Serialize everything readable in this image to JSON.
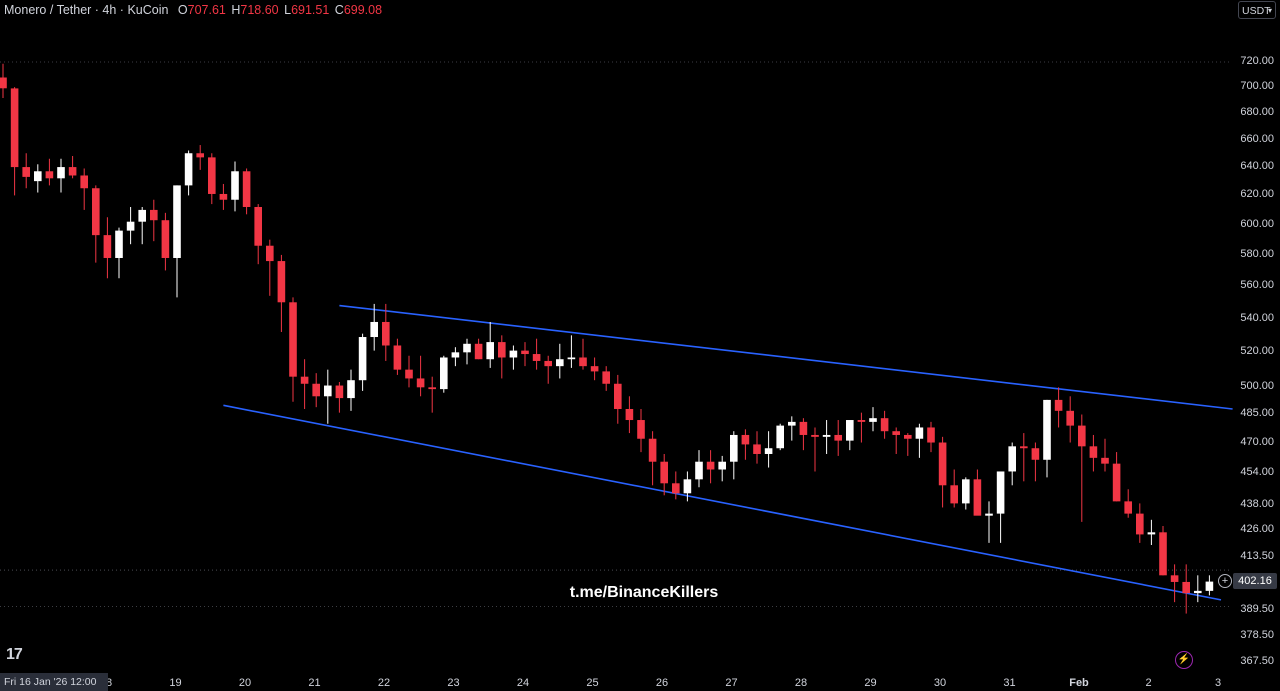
{
  "header": {
    "symbol": "Monero / Tether · 4h · KuCoin",
    "o_label": "O",
    "o_value": "707.61",
    "h_label": "H",
    "h_value": "718.60",
    "l_label": "L",
    "l_value": "691.51",
    "c_label": "C",
    "c_value": "699.08"
  },
  "currency_button": "USDT",
  "watermark": "t.me/BinanceKillers",
  "logo_text": "17",
  "crosshair_date": "Fri 16 Jan '26   12:00",
  "last_price_label": "402.16",
  "colors": {
    "up": "#ffffff",
    "down": "#f23645",
    "channel": "#2962ff",
    "background": "#000000"
  },
  "icons": [
    "plus-circle-icon",
    "lightning-icon",
    "tradingview-logo-icon",
    "chevron-down-icon"
  ],
  "chart_data": {
    "type": "candlestick",
    "y_scale": "log",
    "ylim": [
      363,
      735
    ],
    "y_ticks": [
      "720.00",
      "700.00",
      "680.00",
      "660.00",
      "640.00",
      "620.00",
      "600.00",
      "580.00",
      "560.00",
      "540.00",
      "520.00",
      "500.00",
      "485.00",
      "470.00",
      "454.00",
      "438.00",
      "426.00",
      "413.50",
      "389.50",
      "378.50",
      "367.50"
    ],
    "x_ticks": [
      {
        "label": "18",
        "bold": false
      },
      {
        "label": "19",
        "bold": false
      },
      {
        "label": "20",
        "bold": false
      },
      {
        "label": "21",
        "bold": false
      },
      {
        "label": "22",
        "bold": false
      },
      {
        "label": "23",
        "bold": false
      },
      {
        "label": "24",
        "bold": false
      },
      {
        "label": "25",
        "bold": false
      },
      {
        "label": "26",
        "bold": false
      },
      {
        "label": "27",
        "bold": false
      },
      {
        "label": "28",
        "bold": false
      },
      {
        "label": "29",
        "bold": false
      },
      {
        "label": "30",
        "bold": false
      },
      {
        "label": "31",
        "bold": false
      },
      {
        "label": "Feb",
        "bold": true
      },
      {
        "label": "2",
        "bold": false
      },
      {
        "label": "3",
        "bold": false
      }
    ],
    "candles": [
      [
        707.6,
        718.6,
        691.5,
        699.1
      ],
      [
        699,
        700,
        620,
        640
      ],
      [
        640,
        650,
        625,
        633
      ],
      [
        630,
        642,
        622,
        637
      ],
      [
        637,
        646,
        627,
        632
      ],
      [
        632,
        646,
        622,
        640
      ],
      [
        640,
        648,
        632,
        634
      ],
      [
        634,
        639,
        610,
        625
      ],
      [
        625,
        627,
        575,
        593
      ],
      [
        593,
        605,
        565,
        578
      ],
      [
        578,
        598,
        565,
        596
      ],
      [
        596,
        612,
        587,
        602
      ],
      [
        602,
        612,
        587,
        610
      ],
      [
        610,
        617,
        589,
        603
      ],
      [
        603,
        608,
        570,
        578
      ],
      [
        578,
        627,
        553,
        627
      ],
      [
        627,
        652,
        620,
        650
      ],
      [
        650,
        656,
        638,
        647
      ],
      [
        647,
        650,
        614,
        621
      ],
      [
        621,
        628,
        610,
        617
      ],
      [
        617,
        644,
        609,
        637
      ],
      [
        637,
        639,
        607,
        612
      ],
      [
        612,
        614,
        574,
        586
      ],
      [
        586,
        590,
        554,
        576
      ],
      [
        576,
        580,
        532,
        550
      ],
      [
        550,
        553,
        492,
        506
      ],
      [
        506,
        516,
        488,
        502
      ],
      [
        502,
        508,
        489,
        495
      ],
      [
        495,
        510,
        480,
        501
      ],
      [
        501,
        503,
        486,
        494
      ],
      [
        494,
        510,
        487,
        504
      ],
      [
        504,
        531,
        498,
        529
      ],
      [
        529,
        549,
        521,
        538
      ],
      [
        538,
        549,
        515,
        524
      ],
      [
        524,
        528,
        507,
        510
      ],
      [
        510,
        518,
        500,
        505
      ],
      [
        505,
        518,
        495,
        500
      ],
      [
        500,
        506,
        486,
        499
      ],
      [
        499,
        518,
        497,
        517
      ],
      [
        517,
        523,
        512,
        520
      ],
      [
        520,
        528,
        513,
        525
      ],
      [
        525,
        528,
        516,
        516
      ],
      [
        516,
        538,
        511,
        526
      ],
      [
        526,
        530,
        505,
        517
      ],
      [
        517,
        524,
        510,
        521
      ],
      [
        521,
        526,
        512,
        519
      ],
      [
        519,
        528,
        510,
        515
      ],
      [
        515,
        518,
        502,
        512
      ],
      [
        512,
        525,
        505,
        516
      ],
      [
        516,
        530,
        511,
        517
      ],
      [
        517,
        528,
        510,
        512
      ],
      [
        512,
        517,
        504,
        509
      ],
      [
        509,
        512,
        498,
        502
      ],
      [
        502,
        507,
        480,
        488
      ],
      [
        488,
        495,
        475,
        482
      ],
      [
        482,
        488,
        465,
        472
      ],
      [
        472,
        476,
        448,
        460
      ],
      [
        460,
        464,
        443,
        449
      ],
      [
        449,
        455,
        441,
        444
      ],
      [
        444,
        455,
        440,
        451
      ],
      [
        451,
        466,
        447,
        460
      ],
      [
        460,
        466,
        449,
        456
      ],
      [
        456,
        463,
        450,
        460
      ],
      [
        460,
        476,
        451,
        474
      ],
      [
        474,
        477,
        461,
        469
      ],
      [
        469,
        476,
        459,
        464
      ],
      [
        464,
        476,
        457,
        467
      ],
      [
        467,
        480,
        466,
        479
      ],
      [
        479,
        484,
        471,
        481
      ],
      [
        481,
        483,
        466,
        474
      ],
      [
        474,
        478,
        455,
        473
      ],
      [
        473,
        482,
        464,
        474
      ],
      [
        474,
        482,
        463,
        471
      ],
      [
        471,
        481,
        466,
        482
      ],
      [
        482,
        486,
        470,
        481
      ],
      [
        481,
        489,
        476,
        483
      ],
      [
        483,
        487,
        472,
        476
      ],
      [
        476,
        478,
        464,
        474
      ],
      [
        474,
        475,
        463,
        472
      ],
      [
        472,
        480,
        462,
        478
      ],
      [
        478,
        481,
        465,
        470
      ],
      [
        470,
        473,
        437,
        448
      ],
      [
        448,
        456,
        437,
        439
      ],
      [
        439,
        452,
        436,
        451
      ],
      [
        451,
        456,
        436,
        433
      ],
      [
        433,
        440,
        420,
        434
      ],
      [
        434,
        453,
        420,
        455
      ],
      [
        455,
        470,
        448,
        468
      ],
      [
        468,
        475,
        450,
        467
      ],
      [
        467,
        470,
        450,
        461
      ],
      [
        461,
        493,
        452,
        493
      ],
      [
        493,
        500,
        478,
        487
      ],
      [
        487,
        495,
        470,
        479
      ],
      [
        479,
        485,
        430,
        468
      ],
      [
        468,
        474,
        455,
        462
      ],
      [
        462,
        472,
        455,
        459
      ],
      [
        459,
        465,
        440,
        440
      ],
      [
        440,
        446,
        432,
        434
      ],
      [
        434,
        439,
        420,
        424
      ],
      [
        424,
        431,
        419,
        425
      ],
      [
        425,
        428,
        405,
        405
      ],
      [
        405,
        410,
        393,
        402
      ],
      [
        402,
        410,
        388,
        397
      ],
      [
        397,
        405,
        393,
        398
      ],
      [
        398,
        405,
        396,
        402.16
      ]
    ],
    "channel_upper": {
      "start": {
        "x_index": 29,
        "price": 548
      },
      "end": {
        "x_index": 106,
        "price": 488
      }
    },
    "channel_lower": {
      "start": {
        "x_index": 19,
        "price": 490
      },
      "end": {
        "x_index": 105,
        "price": 394
      }
    },
    "dotted_levels": [
      720.0,
      407.4,
      391.2
    ]
  }
}
